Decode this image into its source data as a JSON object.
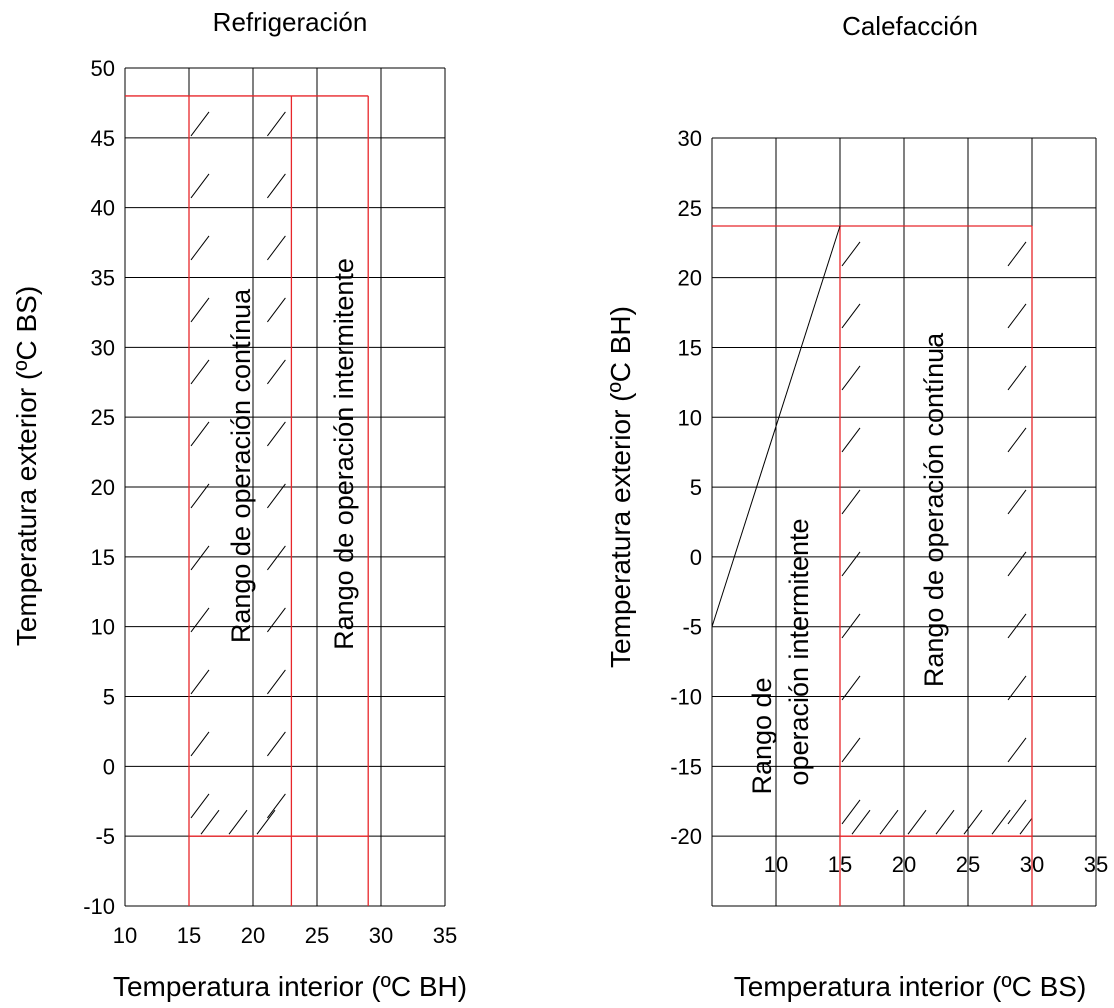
{
  "colors": {
    "grid": "#000000",
    "boundary": "#e8262a",
    "hatch": "#000000",
    "background": "#ffffff"
  },
  "chart_data": [
    {
      "type": "line",
      "title": "Refrigeración",
      "xlabel": "Temperatura interior (ºC BH)",
      "ylabel": "Temperatura exterior (ºC BS)",
      "xlim": [
        10,
        35
      ],
      "ylim": [
        -10,
        50
      ],
      "xticks": [
        "10",
        "15",
        "20",
        "25",
        "30",
        "35"
      ],
      "yticks": [
        "-10",
        "-5",
        "0",
        "5",
        "10",
        "15",
        "20",
        "25",
        "30",
        "35",
        "40",
        "45",
        "50"
      ],
      "grid": true,
      "regions": [
        {
          "name": "Rango de operación contínua",
          "x": [
            15,
            23
          ],
          "y": [
            -5,
            48
          ],
          "hatched": true
        },
        {
          "name": "Rango de operación intermitente",
          "x": [
            15,
            29
          ],
          "y": [
            -5,
            48
          ],
          "hatched": false
        }
      ],
      "boundary_lines": [
        {
          "x": [
            10,
            29
          ],
          "y": [
            48,
            48
          ]
        },
        {
          "x": [
            15,
            15
          ],
          "y": [
            -10,
            48
          ]
        },
        {
          "x": [
            23,
            23
          ],
          "y": [
            -10,
            48
          ]
        },
        {
          "x": [
            29,
            29
          ],
          "y": [
            -10,
            48
          ]
        },
        {
          "x": [
            15,
            29
          ],
          "y": [
            -5,
            -5
          ]
        }
      ]
    },
    {
      "type": "line",
      "title": "Calefacción",
      "xlabel": "Temperatura interior (ºC BS)",
      "ylabel": "Temperatura exterior (ºC BH)",
      "xlim": [
        5,
        35
      ],
      "ylim": [
        -25,
        30
      ],
      "xticks": [
        "10",
        "15",
        "20",
        "25",
        "30",
        "35"
      ],
      "yticks": [
        "-20",
        "-15",
        "-10",
        "-5",
        "0",
        "5",
        "10",
        "15",
        "20",
        "25",
        "30"
      ],
      "grid": true,
      "regions": [
        {
          "name": "Rango de operación contínua",
          "x": [
            15,
            30
          ],
          "y": [
            -20,
            23.7
          ],
          "hatched": true
        },
        {
          "name": "Rango de operación intermitente",
          "x": [
            5,
            15
          ],
          "y": [
            -20,
            23.7
          ],
          "hatched": false
        }
      ],
      "boundary_lines": [
        {
          "x": [
            5,
            30
          ],
          "y": [
            23.7,
            23.7
          ]
        },
        {
          "x": [
            15,
            15
          ],
          "y": [
            -25,
            23.7
          ]
        },
        {
          "x": [
            30,
            30
          ],
          "y": [
            -25,
            23.7
          ]
        },
        {
          "x": [
            15,
            30
          ],
          "y": [
            -20,
            -20
          ]
        }
      ],
      "diagonal": {
        "x": [
          5,
          15
        ],
        "y": [
          -5,
          23.7
        ]
      },
      "region_labels": {
        "intermittent": [
          "Rango de",
          "operación intermitente"
        ],
        "continuous": "Rango de operación contínua"
      }
    }
  ]
}
